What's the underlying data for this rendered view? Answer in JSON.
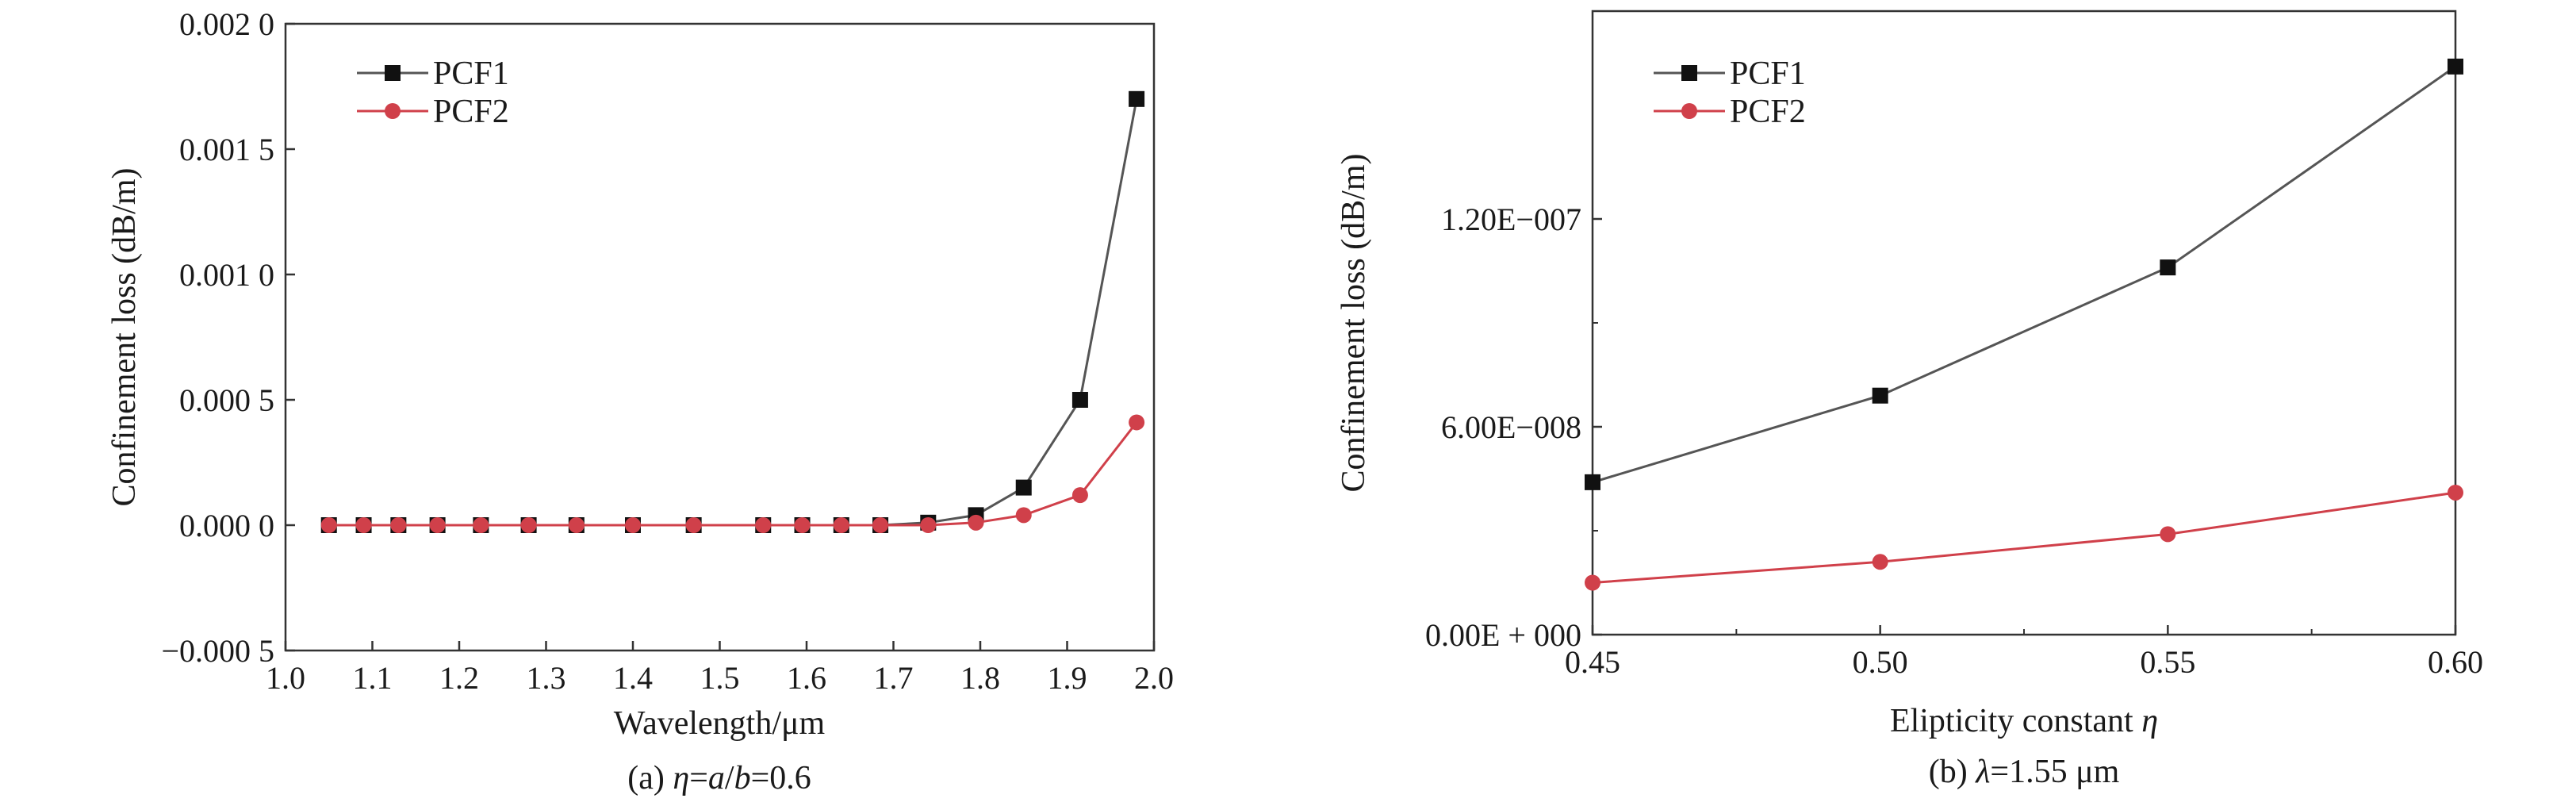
{
  "chart_data": [
    {
      "type": "line",
      "xlabel": "Wavelength/μm",
      "ylabel": "Confinement loss (dB/m)",
      "caption": {
        "prefix": "(a) ",
        "eta": "η",
        "eq1": "=",
        "a": "a",
        "slash": "/",
        "b": "b",
        "rest": "=0.6"
      },
      "xlim": [
        1.0,
        2.0
      ],
      "ylim": [
        -0.0005,
        0.002
      ],
      "xticks": [
        1.0,
        1.1,
        1.2,
        1.3,
        1.4,
        1.5,
        1.6,
        1.7,
        1.8,
        1.9,
        2.0
      ],
      "xtick_labels": [
        "1.0",
        "1.1",
        "1.2",
        "1.3",
        "1.4",
        "1.5",
        "1.6",
        "1.7",
        "1.8",
        "1.9",
        "2.0"
      ],
      "yticks": [
        -0.0005,
        0.0,
        0.0005,
        0.001,
        0.0015,
        0.002
      ],
      "ytick_labels": [
        "−0.000 5",
        "0.000 0",
        "0.000 5",
        "0.001 0",
        "0.001 5",
        "0.002 0"
      ],
      "legend_position": "top-left",
      "grid": false,
      "series": [
        {
          "name": "PCF1",
          "color": "#555555",
          "marker": "square",
          "x": [
            1.05,
            1.09,
            1.13,
            1.175,
            1.225,
            1.28,
            1.335,
            1.4,
            1.47,
            1.55,
            1.595,
            1.64,
            1.685,
            1.74,
            1.795,
            1.85,
            1.915,
            1.98
          ],
          "y": [
            0.0,
            0.0,
            0.0,
            0.0,
            0.0,
            0.0,
            0.0,
            0.0,
            0.0,
            0.0,
            0.0,
            0.0,
            0.0,
            1e-05,
            4e-05,
            0.00015,
            0.0005,
            0.0017
          ]
        },
        {
          "name": "PCF2",
          "color": "#d0404a",
          "marker": "circle",
          "x": [
            1.05,
            1.09,
            1.13,
            1.175,
            1.225,
            1.28,
            1.335,
            1.4,
            1.47,
            1.55,
            1.595,
            1.64,
            1.685,
            1.74,
            1.795,
            1.85,
            1.915,
            1.98
          ],
          "y": [
            0.0,
            0.0,
            0.0,
            0.0,
            0.0,
            0.0,
            0.0,
            0.0,
            0.0,
            0.0,
            0.0,
            0.0,
            0.0,
            0.0,
            1e-05,
            4e-05,
            0.00012,
            0.00041
          ]
        }
      ]
    },
    {
      "type": "line",
      "xlabel_text": "Elipticity constant ",
      "xlabel_symbol": "η",
      "ylabel": "Confinement loss (dB/m)",
      "caption": {
        "prefix": "(b) ",
        "lambda": "λ",
        "rest": "=1.55 μm"
      },
      "xlim": [
        0.45,
        0.6
      ],
      "ylim": [
        0.0,
        1.8e-07
      ],
      "xticks": [
        0.45,
        0.5,
        0.55,
        0.6
      ],
      "xtick_labels": [
        "0.45",
        "0.50",
        "0.55",
        "0.60"
      ],
      "yticks": [
        0.0,
        6e-08,
        1.2e-07
      ],
      "ytick_labels": [
        "0.00E + 000",
        "6.00E−008",
        "1.20E−007"
      ],
      "legend_position": "top-left",
      "grid": false,
      "series": [
        {
          "name": "PCF1",
          "color": "#555555",
          "marker": "square",
          "x": [
            0.45,
            0.5,
            0.55,
            0.6
          ],
          "y": [
            4.4e-08,
            6.9e-08,
            1.06e-07,
            1.64e-07
          ]
        },
        {
          "name": "PCF2",
          "color": "#d0404a",
          "marker": "circle",
          "x": [
            0.45,
            0.5,
            0.55,
            0.6
          ],
          "y": [
            1.5e-08,
            2.1e-08,
            2.9e-08,
            4.1e-08
          ]
        }
      ]
    }
  ]
}
